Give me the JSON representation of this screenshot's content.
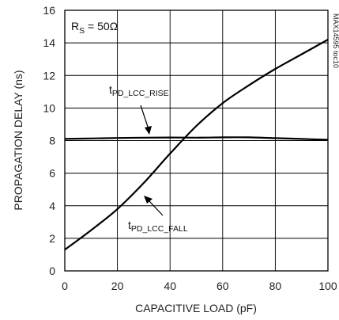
{
  "chart_data": {
    "type": "line",
    "xlabel": "CAPACITIVE LOAD (pF)",
    "ylabel": "PROPAGATION DELAY (ns)",
    "xlim": [
      0,
      100
    ],
    "ylim": [
      0,
      16
    ],
    "x_ticks": [
      "0",
      "20",
      "40",
      "60",
      "80",
      "100"
    ],
    "y_ticks": [
      "0",
      "2",
      "4",
      "6",
      "8",
      "10",
      "12",
      "14",
      "16"
    ],
    "grid": true,
    "condition": {
      "main": "R",
      "sub": "S",
      "value": " = 50Ω"
    },
    "part_id": "MAX14595 toc10",
    "series": [
      {
        "name_main": "t",
        "name_sub": "PD_LCC_RISE",
        "x": [
          0,
          10,
          20,
          30,
          40,
          50,
          60,
          70,
          80,
          90,
          100
        ],
        "y": [
          8.1,
          8.13,
          8.16,
          8.18,
          8.19,
          8.18,
          8.2,
          8.2,
          8.15,
          8.1,
          8.05
        ]
      },
      {
        "name_main": "t",
        "name_sub": "PD_LCC_FALL",
        "x": [
          0,
          10,
          20,
          30,
          40,
          50,
          60,
          70,
          80,
          90,
          100
        ],
        "y": [
          1.3,
          2.5,
          3.8,
          5.4,
          7.2,
          8.9,
          10.3,
          11.4,
          12.4,
          13.3,
          14.2
        ]
      }
    ]
  }
}
